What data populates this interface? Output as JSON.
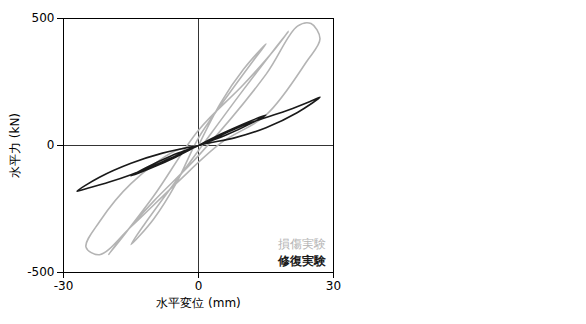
{
  "chart_data": {
    "type": "line",
    "x_label": "水平変位 (mm)",
    "y_label": "水平力 (kN)",
    "xlim": [
      -30,
      30
    ],
    "xticks": [
      -30,
      0,
      30
    ],
    "ylim": [
      -500,
      500
    ],
    "yticks": [
      -500,
      0,
      500
    ],
    "grid": true,
    "legend": "bottom-right",
    "series": [
      {
        "name": "損傷実験",
        "color": "#b4b4b4",
        "x": [
          0,
          5,
          10,
          15,
          12,
          5,
          0,
          -5,
          -10,
          -15,
          -12,
          -5,
          0,
          10,
          20,
          17,
          10,
          0,
          -10,
          -20,
          -17,
          -10,
          0,
          15,
          22,
          25,
          27,
          24,
          15,
          5,
          -5,
          -15,
          -22,
          -25,
          -22,
          -15,
          -5,
          0
        ],
        "values": [
          0,
          170,
          300,
          400,
          330,
          160,
          30,
          -150,
          -290,
          -390,
          -310,
          -140,
          -20,
          220,
          450,
          380,
          240,
          60,
          -200,
          -430,
          -360,
          -220,
          -40,
          280,
          470,
          480,
          420,
          330,
          120,
          10,
          -150,
          -320,
          -430,
          -400,
          -300,
          -150,
          -20,
          0
        ]
      },
      {
        "name": "修復実験",
        "color": "#1a1a1a",
        "x": [
          0,
          5,
          10,
          15,
          12,
          6,
          0,
          -5,
          -10,
          -15,
          -12,
          -6,
          0,
          5,
          10,
          15,
          20,
          25,
          27,
          22,
          15,
          8,
          0,
          -5,
          -10,
          -15,
          -20,
          -25,
          -27,
          -22,
          -15,
          -8,
          0
        ],
        "values": [
          0,
          45,
          85,
          120,
          90,
          40,
          0,
          -45,
          -85,
          -120,
          -90,
          -40,
          0,
          40,
          80,
          110,
          140,
          175,
          190,
          130,
          70,
          30,
          0,
          -40,
          -80,
          -115,
          -145,
          -170,
          -180,
          -125,
          -70,
          -30,
          0
        ]
      }
    ]
  }
}
